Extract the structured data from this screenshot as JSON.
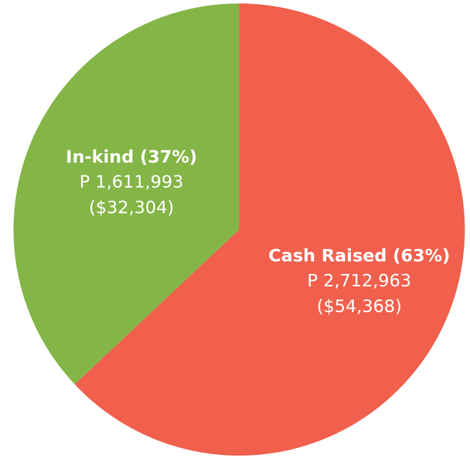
{
  "chart_data": {
    "type": "pie",
    "categories": [
      "Cash Raised",
      "In-kind"
    ],
    "values": [
      63,
      37
    ],
    "value_labels": [
      "(63%)",
      "(37%)"
    ],
    "peso_labels": [
      "P 2,712,963",
      "P 1,611,993"
    ],
    "usd_labels": [
      "($54,368)",
      "($32,304)"
    ],
    "colors": [
      "#f0604d",
      "#84b547"
    ]
  }
}
